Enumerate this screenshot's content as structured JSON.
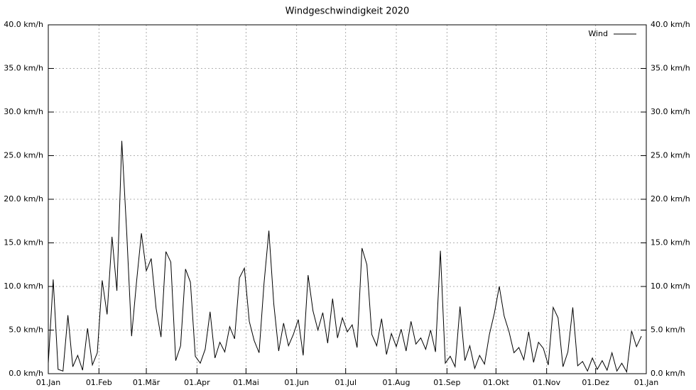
{
  "chart_data": {
    "type": "line",
    "title": "Windgeschwindigkeit 2020",
    "x": [
      0,
      3,
      6,
      9,
      12,
      15,
      18,
      21,
      24,
      27,
      30,
      33,
      36,
      39,
      42,
      45,
      48,
      51,
      54,
      57,
      60,
      63,
      66,
      69,
      72,
      75,
      78,
      81,
      84,
      87,
      90,
      93,
      96,
      99,
      102,
      105,
      108,
      111,
      114,
      117,
      120,
      123,
      126,
      129,
      132,
      135,
      138,
      141,
      144,
      147,
      150,
      153,
      156,
      159,
      162,
      165,
      168,
      171,
      174,
      177,
      180,
      183,
      186,
      189,
      192,
      195,
      198,
      201,
      204,
      207,
      210,
      213,
      216,
      219,
      222,
      225,
      228,
      231,
      234,
      237,
      240,
      243,
      246,
      249,
      252,
      255,
      258,
      261,
      264,
      267,
      270,
      273,
      276,
      279,
      282,
      285,
      288,
      291,
      294,
      297,
      300,
      303,
      306,
      309,
      312,
      315,
      318,
      321,
      324,
      327,
      330,
      333,
      336,
      339,
      342,
      345,
      348,
      351,
      354,
      357,
      360,
      363
    ],
    "series": [
      {
        "name": "Wind",
        "color": "#000000",
        "values": [
          1.2,
          10.8,
          0.5,
          0.3,
          6.7,
          0.8,
          2.1,
          0.4,
          5.2,
          1.0,
          2.4,
          10.7,
          6.8,
          15.7,
          9.5,
          26.7,
          16.2,
          4.3,
          10.5,
          16.1,
          11.8,
          13.2,
          7.5,
          4.2,
          14.0,
          12.8,
          1.5,
          3.2,
          12.0,
          10.5,
          2.0,
          1.2,
          2.8,
          7.1,
          1.8,
          3.6,
          2.5,
          5.4,
          4.0,
          11.0,
          12.1,
          6.0,
          3.8,
          2.4,
          10.3,
          16.4,
          8.0,
          2.6,
          5.8,
          3.2,
          4.5,
          6.2,
          2.1,
          11.3,
          7.2,
          5.0,
          7.0,
          3.5,
          8.6,
          4.1,
          6.4,
          4.8,
          5.6,
          3.0,
          14.4,
          12.5,
          4.5,
          3.2,
          6.3,
          2.2,
          4.6,
          3.1,
          5.1,
          2.6,
          6.0,
          3.4,
          4.1,
          2.8,
          5.0,
          2.5,
          14.1,
          1.2,
          2.0,
          0.8,
          7.7,
          1.5,
          3.2,
          0.6,
          2.1,
          1.1,
          4.5,
          6.9,
          10.0,
          6.6,
          4.8,
          2.4,
          3.0,
          1.6,
          4.8,
          1.3,
          3.6,
          2.9,
          1.0,
          7.6,
          6.4,
          0.8,
          2.5,
          7.6,
          0.9,
          1.4,
          0.3,
          1.8,
          0.5,
          1.5,
          0.4,
          2.4,
          0.3,
          1.2,
          0.2,
          4.9,
          3.1,
          4.3
        ]
      }
    ],
    "xlim": [
      0,
      366
    ],
    "xticks": [
      {
        "value": 0,
        "label": "01.Jan"
      },
      {
        "value": 31,
        "label": "01.Feb"
      },
      {
        "value": 60,
        "label": "01.Mär"
      },
      {
        "value": 91,
        "label": "01.Apr"
      },
      {
        "value": 121,
        "label": "01.Mai"
      },
      {
        "value": 152,
        "label": "01.Jun"
      },
      {
        "value": 182,
        "label": "01.Jul"
      },
      {
        "value": 213,
        "label": "01.Aug"
      },
      {
        "value": 244,
        "label": "01.Sep"
      },
      {
        "value": 274,
        "label": "01.Okt"
      },
      {
        "value": 305,
        "label": "01.Nov"
      },
      {
        "value": 335,
        "label": "01.Dez"
      },
      {
        "value": 366,
        "label": "01.Jan"
      }
    ],
    "ylim": [
      0,
      40
    ],
    "yticks": [
      {
        "value": 0,
        "label": "0.0 km/h"
      },
      {
        "value": 5,
        "label": "5.0 km/h"
      },
      {
        "value": 10,
        "label": "10.0 km/h"
      },
      {
        "value": 15,
        "label": "15.0 km/h"
      },
      {
        "value": 20,
        "label": "20.0 km/h"
      },
      {
        "value": 25,
        "label": "25.0 km/h"
      },
      {
        "value": 30,
        "label": "30.0 km/h"
      },
      {
        "value": 35,
        "label": "35.0 km/h"
      },
      {
        "value": 40,
        "label": "40.0 km/h"
      }
    ],
    "grid": true,
    "legend": "upper right"
  }
}
